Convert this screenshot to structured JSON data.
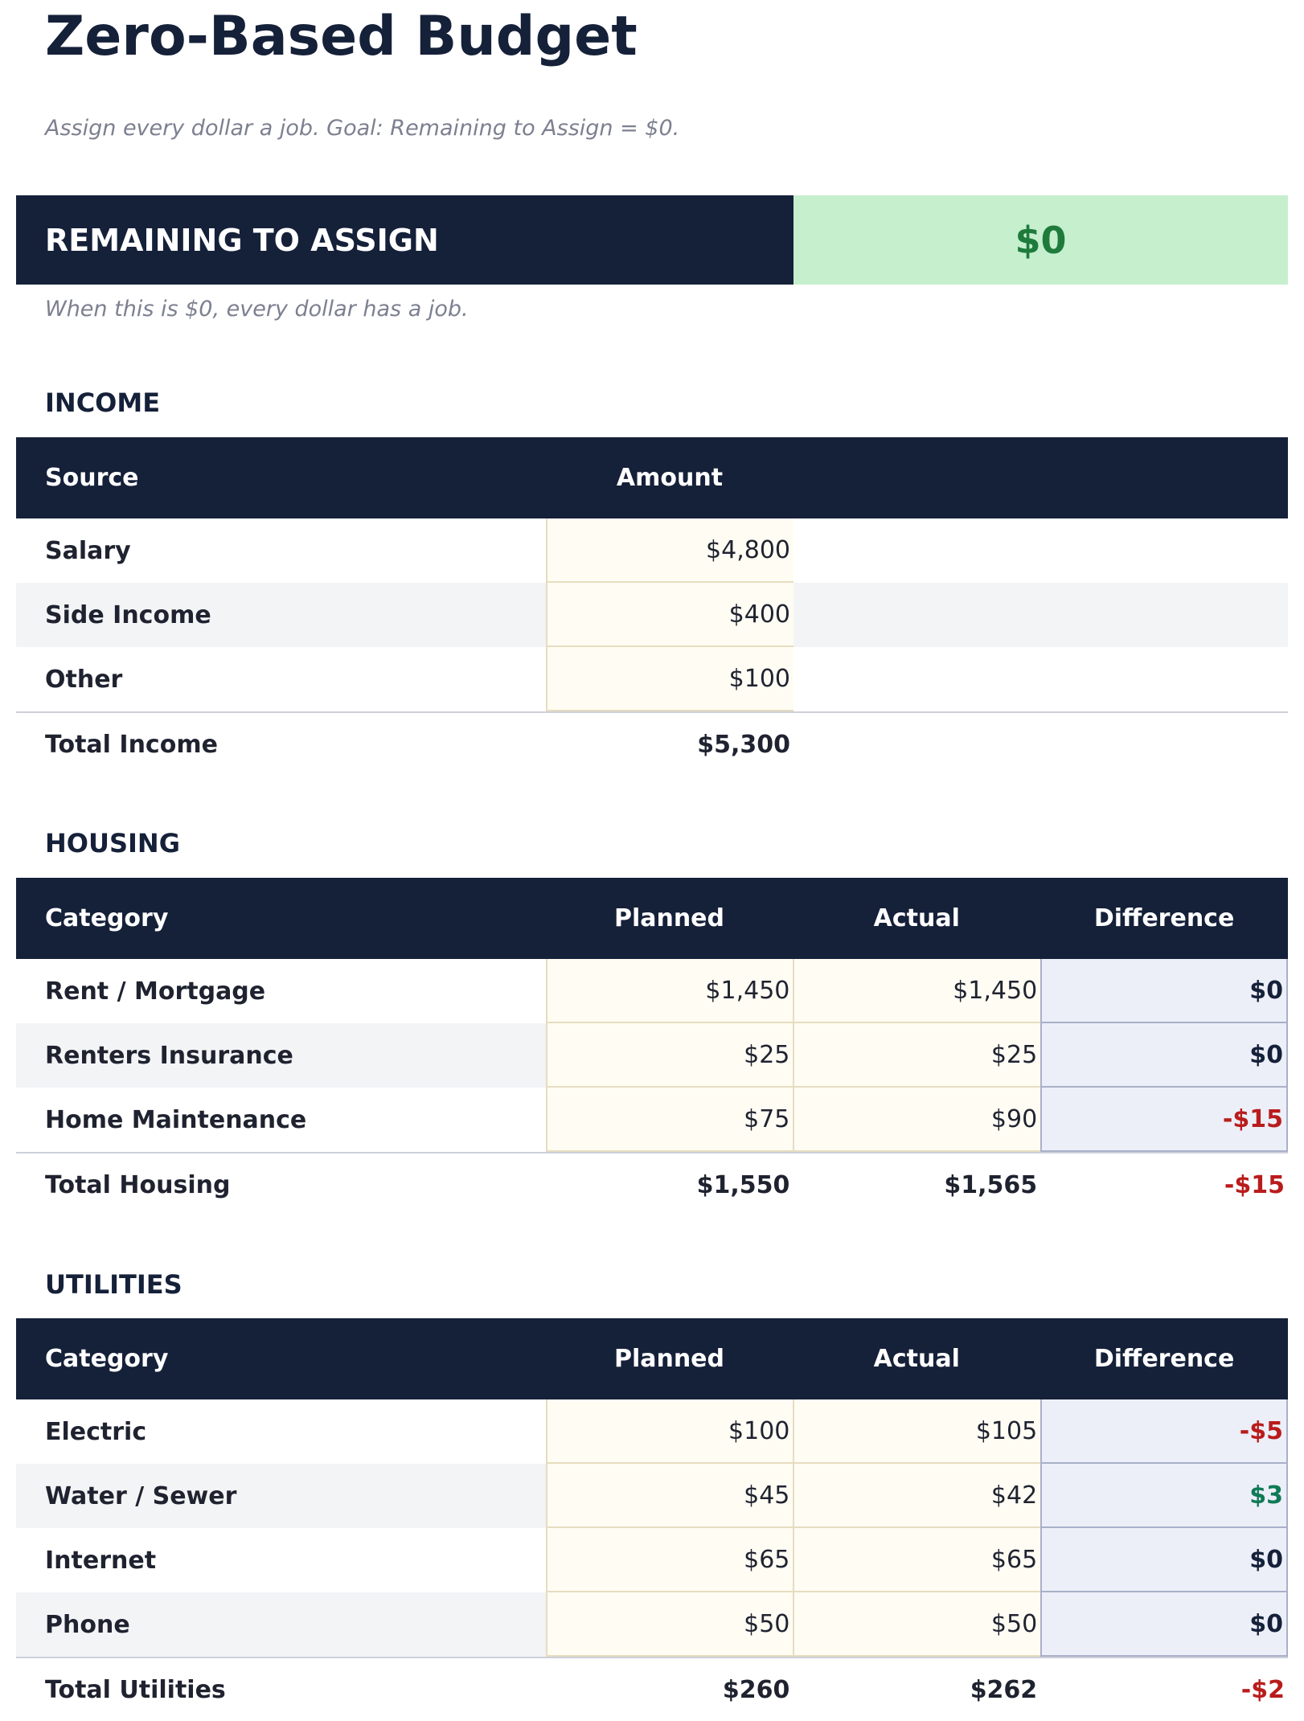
{
  "title": "Zero-Based Budget",
  "subtitle": "Assign every dollar a job. Goal: Remaining to Assign = $0.",
  "remaining": {
    "label": "REMAINING TO ASSIGN",
    "value": "$0",
    "note": "When this is $0, every dollar has a job."
  },
  "colors": {
    "navy": "#152039",
    "negative": "#b91c1c",
    "positive": "#0f7a55",
    "banner_bg": "#c6efce",
    "banner_text": "#1e7b3c"
  },
  "sections": [
    {
      "title": "INCOME",
      "headers": [
        "Source",
        "Amount"
      ],
      "rows": [
        {
          "label": "Salary",
          "values": [
            "$4,800"
          ]
        },
        {
          "label": "Side Income",
          "values": [
            "$400"
          ]
        },
        {
          "label": "Other",
          "values": [
            "$100"
          ]
        }
      ],
      "total": {
        "label": "Total Income",
        "values": [
          "$5,300"
        ]
      }
    },
    {
      "title": "HOUSING",
      "headers": [
        "Category",
        "Planned",
        "Actual",
        "Difference"
      ],
      "rows": [
        {
          "label": "Rent / Mortgage",
          "values": [
            "$1,450",
            "$1,450",
            "$0"
          ]
        },
        {
          "label": "Renters Insurance",
          "values": [
            "$25",
            "$25",
            "$0"
          ]
        },
        {
          "label": "Home Maintenance",
          "values": [
            "$75",
            "$90",
            "-$15"
          ]
        }
      ],
      "total": {
        "label": "Total Housing",
        "values": [
          "$1,550",
          "$1,565",
          "-$15"
        ]
      }
    },
    {
      "title": "UTILITIES",
      "headers": [
        "Category",
        "Planned",
        "Actual",
        "Difference"
      ],
      "rows": [
        {
          "label": "Electric",
          "values": [
            "$100",
            "$105",
            "-$5"
          ]
        },
        {
          "label": "Water / Sewer",
          "values": [
            "$45",
            "$42",
            "$3"
          ]
        },
        {
          "label": "Internet",
          "values": [
            "$65",
            "$65",
            "$0"
          ]
        },
        {
          "label": "Phone",
          "values": [
            "$50",
            "$50",
            "$0"
          ]
        }
      ],
      "total": {
        "label": "Total Utilities",
        "values": [
          "$260",
          "$262",
          "-$2"
        ]
      }
    }
  ]
}
